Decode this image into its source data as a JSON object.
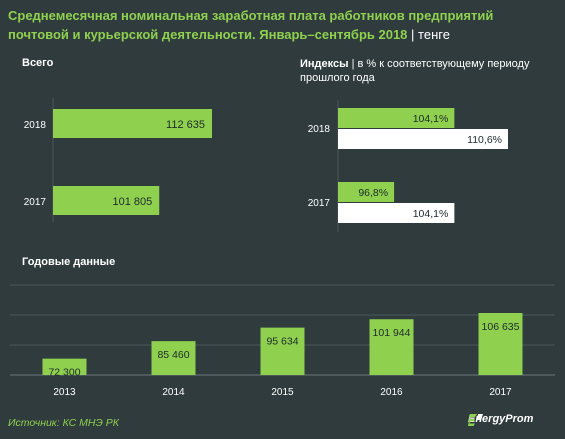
{
  "header": {
    "title": "Среднемесячная номинальная заработная плата работников предприятий почтовой и курьерской деятельности. Январь–сентябрь 2018",
    "unit": "| тенге"
  },
  "sections": {
    "total_label": "Всего",
    "index_label": "Индексы",
    "index_sub": "| в % к соответствующему периоду прошлого года",
    "annual_label": "Годовые данные"
  },
  "footer": {
    "source": "Источник: КС МНЭ РК",
    "logo_text": "EnergyProm"
  },
  "colors": {
    "background": "#2f3b3d",
    "green": "#8fd14f",
    "white": "#ffffff",
    "grid": "#4b5759"
  },
  "chart_data": [
    {
      "type": "bar",
      "orientation": "horizontal",
      "title": "Всего",
      "categories": [
        "2018",
        "2017"
      ],
      "values": [
        112635,
        101805
      ],
      "value_labels": [
        "112 635",
        "101 805"
      ]
    },
    {
      "type": "bar",
      "orientation": "horizontal",
      "title": "Индексы",
      "categories": [
        "2018",
        "2017"
      ],
      "series": [
        {
          "values": [
            104.1,
            96.8
          ],
          "value_labels": [
            "104,1%",
            "96,8%"
          ]
        },
        {
          "values": [
            110.6,
            104.1
          ],
          "value_labels": [
            "110,6%",
            "104,1%"
          ]
        }
      ]
    },
    {
      "type": "bar",
      "title": "Годовые данные",
      "categories": [
        "2013",
        "2014",
        "2015",
        "2016",
        "2017"
      ],
      "values": [
        72300,
        85460,
        95634,
        101944,
        106635
      ],
      "value_labels": [
        "72 300",
        "85 460",
        "95 634",
        "101 944",
        "106 635"
      ]
    }
  ]
}
